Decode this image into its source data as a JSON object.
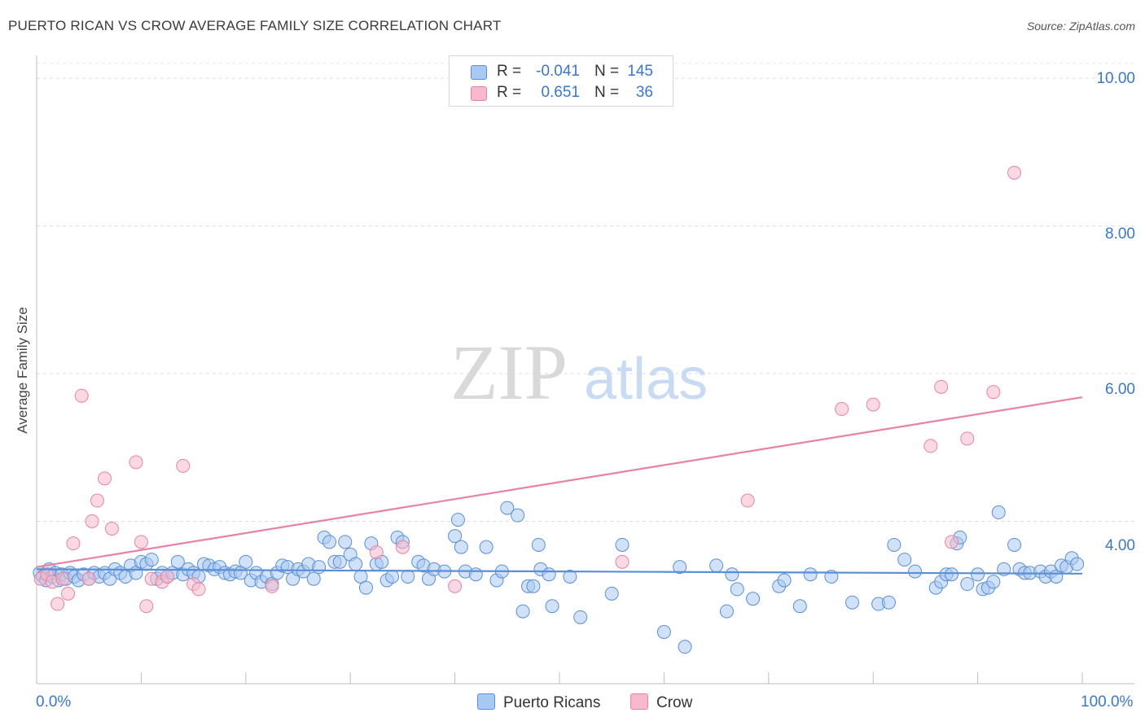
{
  "title": "PUERTO RICAN VS CROW AVERAGE FAMILY SIZE CORRELATION CHART",
  "source": "Source: ZipAtlas.com",
  "watermark": {
    "zip": "ZIP",
    "atlas": "atlas"
  },
  "legend": {
    "rows": [
      {
        "r_label": "R =",
        "r_value": "-0.041",
        "n_label": "N =",
        "n_value": "145",
        "fill": "#a9c9f2",
        "stroke": "#5a8fd6"
      },
      {
        "r_label": "R =",
        "r_value": "0.651",
        "n_label": "N =",
        "n_value": "36",
        "fill": "#f7b9cb",
        "stroke": "#e683a2"
      }
    ]
  },
  "bottom_legend": [
    {
      "label": "Puerto Ricans",
      "fill": "#a9c9f2",
      "stroke": "#5a8fd6"
    },
    {
      "label": "Crow",
      "fill": "#f7b9cb",
      "stroke": "#e683a2"
    }
  ],
  "chart_data": {
    "type": "scatter",
    "title": "PUERTO RICAN VS CROW AVERAGE FAMILY SIZE CORRELATION CHART",
    "xlabel": "",
    "ylabel": "Average Family Size",
    "xlim": [
      0,
      100
    ],
    "ylim": [
      1.8,
      10.2
    ],
    "x_tick_labels": [
      "0.0%",
      "100.0%"
    ],
    "y_ticks": [
      4.0,
      6.0,
      8.0,
      10.0
    ],
    "y_tick_labels": [
      "4.00",
      "6.00",
      "8.00",
      "10.00"
    ],
    "grid": true,
    "series": [
      {
        "name": "Puerto Ricans",
        "color": "#5a8fd6",
        "fill": "#a9c9f2",
        "trend": {
          "x": [
            0,
            100
          ],
          "y": [
            3.35,
            3.29
          ]
        },
        "points": [
          [
            0.3,
            3.3
          ],
          [
            0.6,
            3.25
          ],
          [
            0.9,
            3.2
          ],
          [
            1.2,
            3.35
          ],
          [
            1.5,
            3.25
          ],
          [
            1.8,
            3.3
          ],
          [
            2.1,
            3.2
          ],
          [
            2.4,
            3.28
          ],
          [
            2.8,
            3.22
          ],
          [
            3.2,
            3.3
          ],
          [
            3.6,
            3.25
          ],
          [
            4.0,
            3.2
          ],
          [
            4.5,
            3.28
          ],
          [
            5.0,
            3.22
          ],
          [
            5.5,
            3.3
          ],
          [
            6.0,
            3.25
          ],
          [
            6.5,
            3.3
          ],
          [
            7.0,
            3.22
          ],
          [
            7.5,
            3.35
          ],
          [
            8.0,
            3.3
          ],
          [
            8.5,
            3.25
          ],
          [
            9.0,
            3.4
          ],
          [
            9.5,
            3.3
          ],
          [
            10.0,
            3.45
          ],
          [
            10.5,
            3.42
          ],
          [
            11.0,
            3.48
          ],
          [
            11.5,
            3.22
          ],
          [
            12.0,
            3.3
          ],
          [
            12.5,
            3.25
          ],
          [
            13.0,
            3.3
          ],
          [
            13.5,
            3.45
          ],
          [
            14.0,
            3.28
          ],
          [
            14.5,
            3.35
          ],
          [
            15.0,
            3.3
          ],
          [
            15.5,
            3.25
          ],
          [
            16.0,
            3.42
          ],
          [
            16.5,
            3.4
          ],
          [
            17.0,
            3.35
          ],
          [
            17.5,
            3.38
          ],
          [
            18.0,
            3.3
          ],
          [
            18.5,
            3.28
          ],
          [
            19.0,
            3.32
          ],
          [
            19.5,
            3.3
          ],
          [
            20.0,
            3.45
          ],
          [
            20.5,
            3.2
          ],
          [
            21.0,
            3.3
          ],
          [
            21.5,
            3.18
          ],
          [
            22.0,
            3.25
          ],
          [
            22.5,
            3.15
          ],
          [
            23.0,
            3.3
          ],
          [
            23.5,
            3.4
          ],
          [
            24.0,
            3.38
          ],
          [
            24.5,
            3.22
          ],
          [
            25.0,
            3.35
          ],
          [
            25.5,
            3.32
          ],
          [
            26.0,
            3.42
          ],
          [
            26.5,
            3.22
          ],
          [
            27.0,
            3.38
          ],
          [
            27.5,
            3.78
          ],
          [
            28.0,
            3.72
          ],
          [
            28.5,
            3.45
          ],
          [
            29.0,
            3.45
          ],
          [
            29.5,
            3.72
          ],
          [
            30.0,
            3.55
          ],
          [
            30.5,
            3.42
          ],
          [
            31.0,
            3.25
          ],
          [
            31.5,
            3.1
          ],
          [
            32.0,
            3.7
          ],
          [
            32.5,
            3.42
          ],
          [
            33.0,
            3.45
          ],
          [
            33.5,
            3.2
          ],
          [
            34.0,
            3.25
          ],
          [
            34.5,
            3.78
          ],
          [
            35.0,
            3.72
          ],
          [
            35.5,
            3.25
          ],
          [
            36.5,
            3.45
          ],
          [
            37.0,
            3.4
          ],
          [
            37.5,
            3.22
          ],
          [
            38.0,
            3.35
          ],
          [
            39.0,
            3.32
          ],
          [
            40.0,
            3.8
          ],
          [
            40.3,
            4.02
          ],
          [
            40.6,
            3.65
          ],
          [
            41.0,
            3.32
          ],
          [
            42.0,
            3.28
          ],
          [
            43.0,
            3.65
          ],
          [
            44.0,
            3.2
          ],
          [
            44.5,
            3.32
          ],
          [
            45.0,
            4.18
          ],
          [
            46.0,
            4.08
          ],
          [
            46.5,
            2.78
          ],
          [
            47.0,
            3.12
          ],
          [
            47.5,
            3.12
          ],
          [
            48.0,
            3.68
          ],
          [
            48.2,
            3.35
          ],
          [
            49.0,
            3.28
          ],
          [
            49.3,
            2.85
          ],
          [
            51.0,
            3.25
          ],
          [
            52.0,
            2.7
          ],
          [
            55.0,
            3.02
          ],
          [
            56.0,
            3.68
          ],
          [
            60.0,
            2.5
          ],
          [
            61.5,
            3.38
          ],
          [
            62.0,
            2.3
          ],
          [
            65.0,
            3.4
          ],
          [
            66.0,
            2.78
          ],
          [
            66.5,
            3.28
          ],
          [
            67.0,
            3.08
          ],
          [
            68.5,
            2.95
          ],
          [
            71.0,
            3.12
          ],
          [
            71.5,
            3.2
          ],
          [
            73.0,
            2.85
          ],
          [
            74.0,
            3.28
          ],
          [
            76.0,
            3.25
          ],
          [
            78.0,
            2.9
          ],
          [
            80.5,
            2.88
          ],
          [
            81.5,
            2.9
          ],
          [
            82.0,
            3.68
          ],
          [
            83.0,
            3.48
          ],
          [
            84.0,
            3.32
          ],
          [
            86.0,
            3.1
          ],
          [
            86.5,
            3.18
          ],
          [
            87.0,
            3.28
          ],
          [
            87.5,
            3.28
          ],
          [
            88.0,
            3.7
          ],
          [
            88.3,
            3.78
          ],
          [
            89.0,
            3.15
          ],
          [
            90.0,
            3.28
          ],
          [
            90.5,
            3.08
          ],
          [
            91.0,
            3.1
          ],
          [
            91.5,
            3.18
          ],
          [
            92.0,
            4.12
          ],
          [
            92.5,
            3.35
          ],
          [
            93.5,
            3.68
          ],
          [
            94.0,
            3.35
          ],
          [
            94.5,
            3.3
          ],
          [
            95.0,
            3.3
          ],
          [
            96.0,
            3.32
          ],
          [
            96.5,
            3.25
          ],
          [
            97.0,
            3.32
          ],
          [
            97.5,
            3.25
          ],
          [
            98.0,
            3.4
          ],
          [
            98.5,
            3.38
          ],
          [
            99.0,
            3.5
          ],
          [
            99.5,
            3.42
          ]
        ]
      },
      {
        "name": "Crow",
        "color": "#e683a2",
        "fill": "#f7b9cb",
        "trend": {
          "x": [
            0,
            100
          ],
          "y": [
            3.38,
            5.68
          ]
        },
        "points": [
          [
            0.4,
            3.22
          ],
          [
            1.0,
            3.28
          ],
          [
            1.5,
            3.18
          ],
          [
            2.0,
            2.88
          ],
          [
            2.5,
            3.22
          ],
          [
            3.0,
            3.02
          ],
          [
            3.5,
            3.7
          ],
          [
            4.3,
            5.7
          ],
          [
            5.0,
            3.22
          ],
          [
            5.3,
            4.0
          ],
          [
            5.8,
            4.28
          ],
          [
            6.5,
            4.58
          ],
          [
            7.2,
            3.9
          ],
          [
            9.5,
            4.8
          ],
          [
            10.0,
            3.72
          ],
          [
            10.5,
            2.85
          ],
          [
            11.0,
            3.22
          ],
          [
            12.0,
            3.18
          ],
          [
            12.5,
            3.25
          ],
          [
            14.0,
            4.75
          ],
          [
            15.0,
            3.15
          ],
          [
            15.5,
            3.08
          ],
          [
            22.5,
            3.12
          ],
          [
            32.5,
            3.58
          ],
          [
            35.0,
            3.65
          ],
          [
            40.0,
            3.12
          ],
          [
            56.0,
            3.45
          ],
          [
            68.0,
            4.28
          ],
          [
            77.0,
            5.52
          ],
          [
            80.0,
            5.58
          ],
          [
            85.5,
            5.02
          ],
          [
            86.5,
            5.82
          ],
          [
            87.5,
            3.72
          ],
          [
            89.0,
            5.12
          ],
          [
            91.5,
            5.75
          ],
          [
            93.5,
            8.72
          ]
        ]
      }
    ]
  }
}
